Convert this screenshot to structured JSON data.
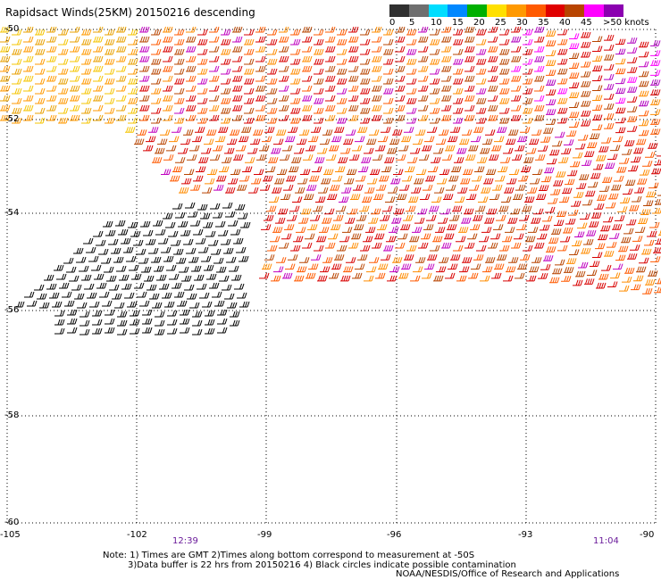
{
  "title": "Rapidsact Winds(25KM) 20150216 descending",
  "colorbar": {
    "labels": [
      "0",
      "5",
      "10",
      "15",
      "20",
      "25",
      "30",
      "35",
      "40",
      "45",
      ">50 knots"
    ],
    "colors": [
      "#303030",
      "#6f6f6f",
      "#00ddff",
      "#0088ff",
      "#00b000",
      "#ffe000",
      "#ff9900",
      "#ff5a00",
      "#e00000",
      "#b84400",
      "#ff00ff",
      "#8b00b0"
    ]
  },
  "map": {
    "lat_labels": [
      "-50",
      "-52",
      "-54",
      "-56",
      "-58",
      "-60"
    ],
    "lon_labels": [
      "-105",
      "-102",
      "-99",
      "-96",
      "-93",
      "-90"
    ],
    "pass_times": [
      "12:39",
      "11:04"
    ]
  },
  "notes": [
    "Note: 1) Times are GMT 2)Times along bottom correspond to measurement at -50S",
    "3)Data buffer is 22 hrs from 20150216 4) Black circles indicate possible contamination"
  ],
  "credit": "NOAA/NESDIS/Office of Research and Applications"
}
